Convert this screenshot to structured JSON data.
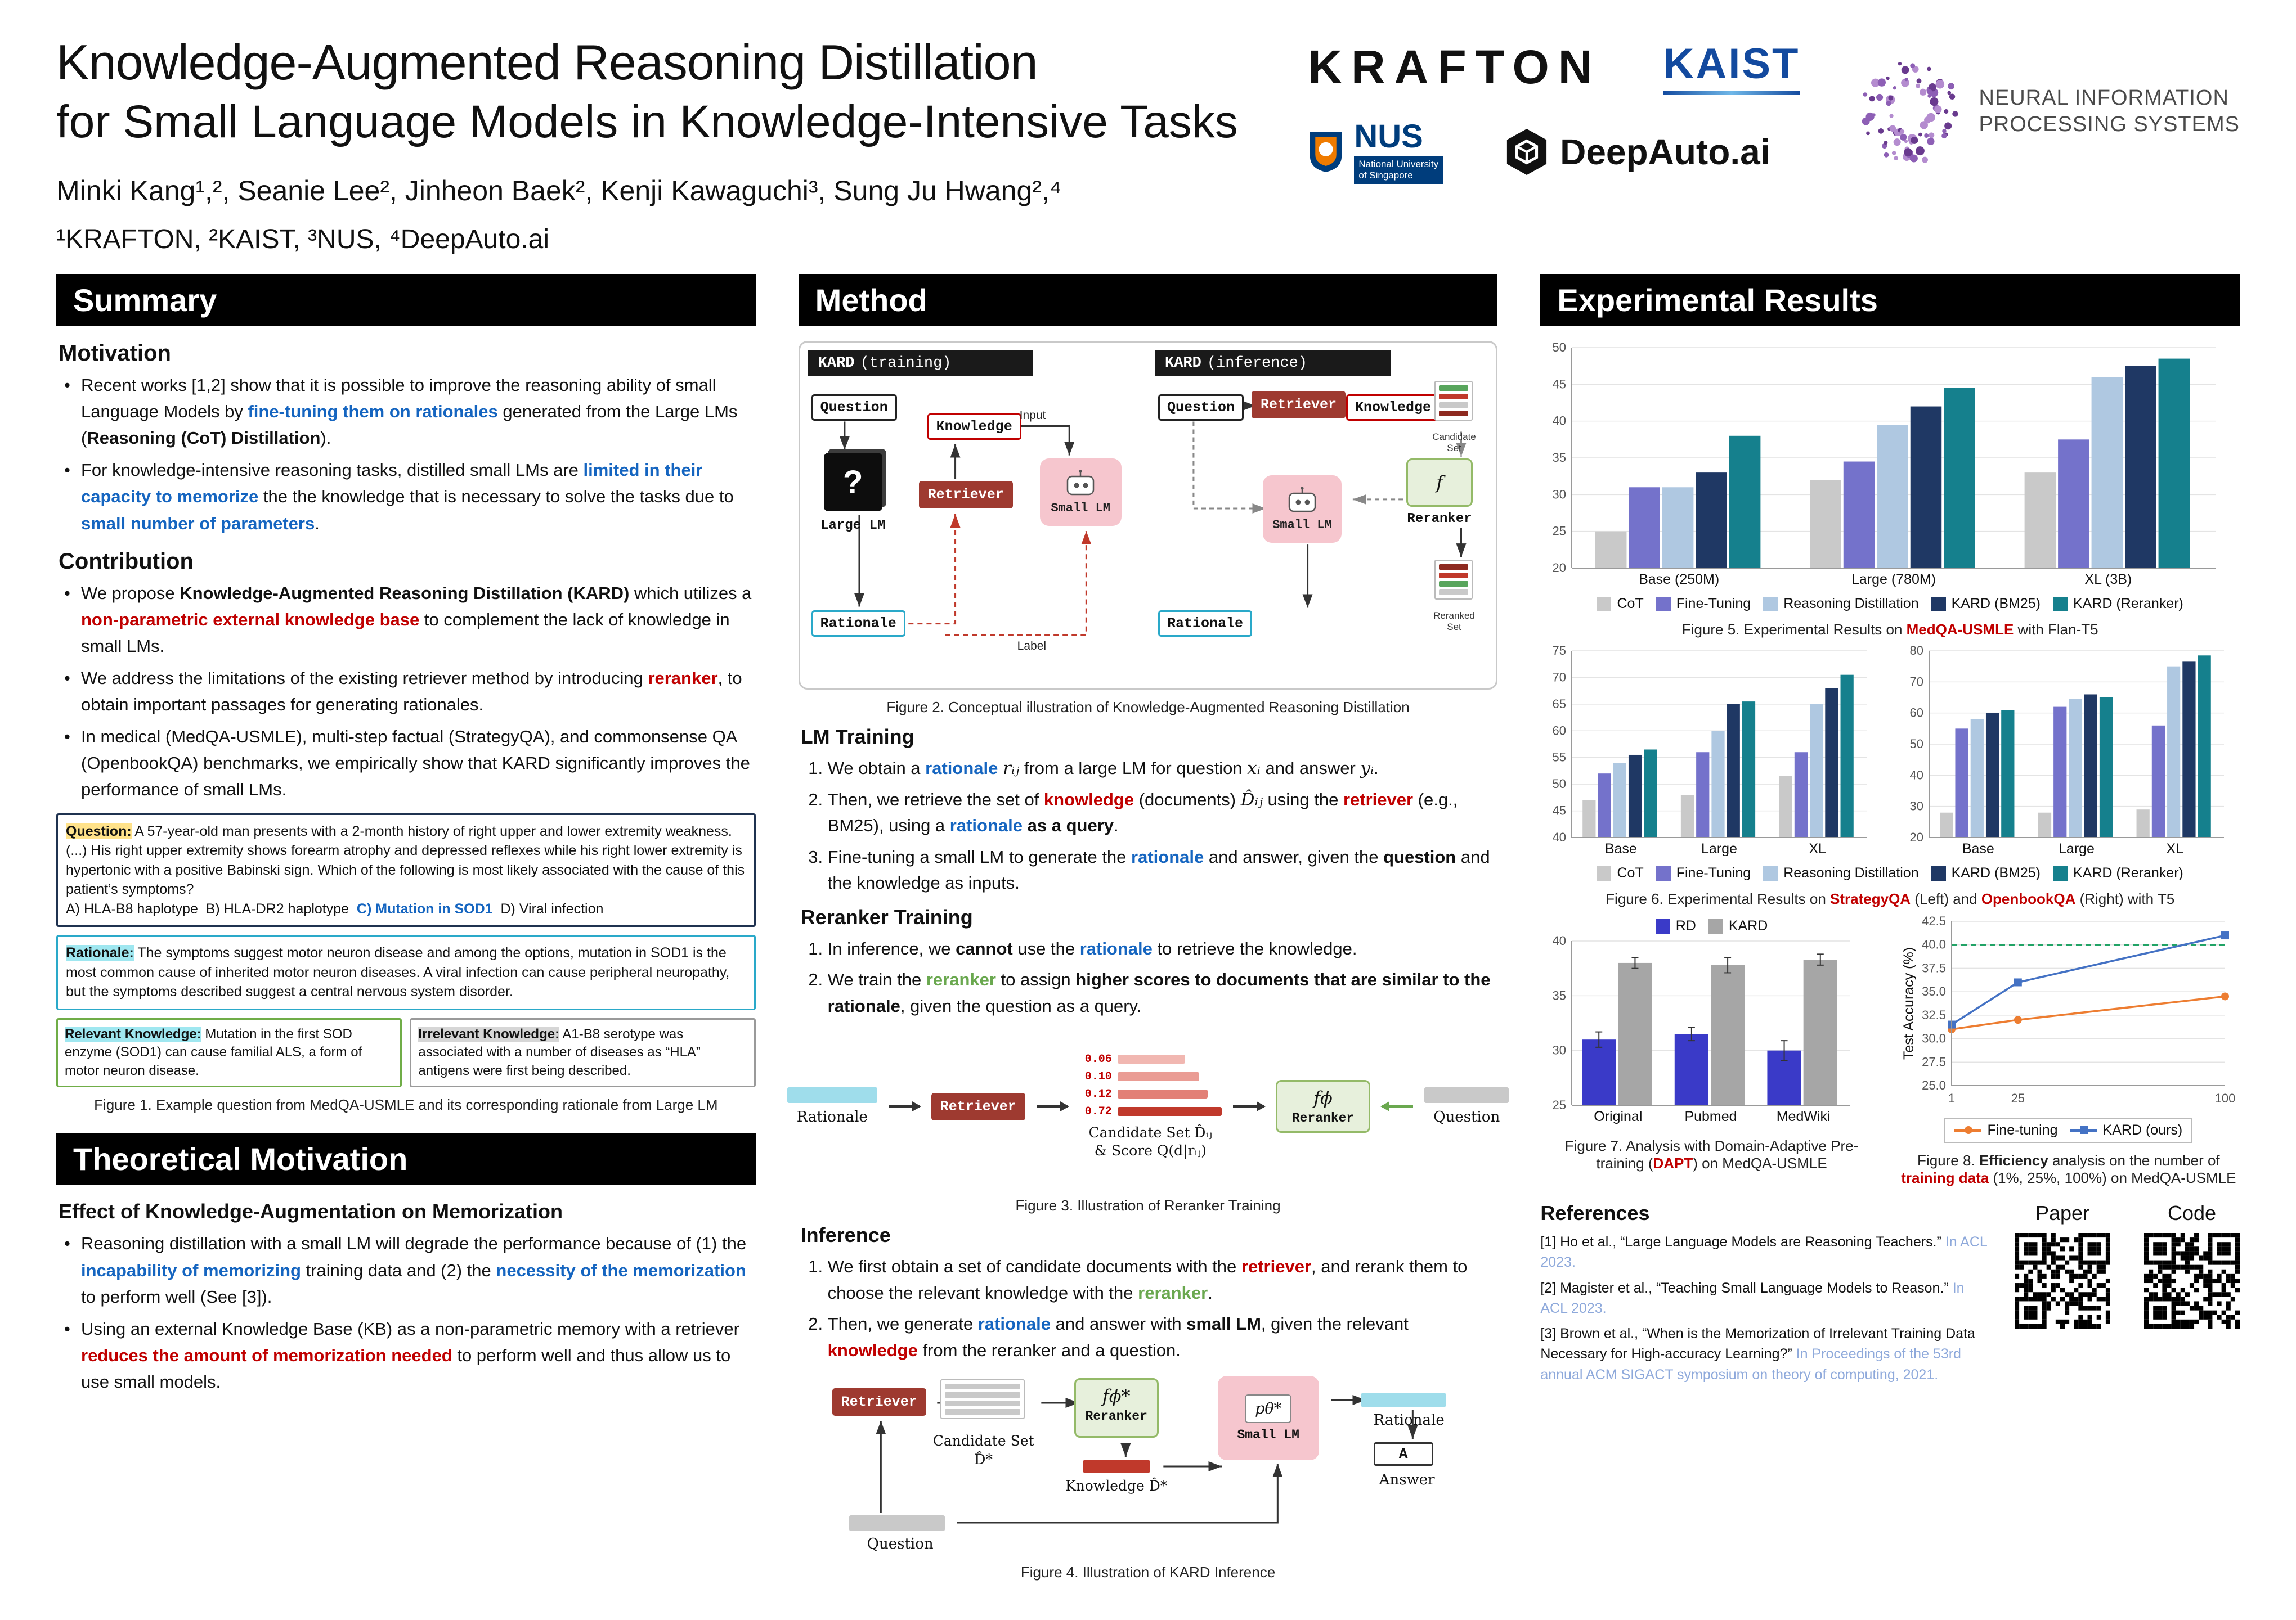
{
  "theme": {
    "blue": "#1565C0",
    "red": "#C00000",
    "green": "#6AA84F",
    "retriever-red": "#9E3A30",
    "smalllm-pink": "#F6C6CE",
    "reranker-green-bg": "#E7F0DC",
    "reranker-green-border": "#94BA68",
    "rationale-cyan": "#2AA9C9",
    "hl-yellow": "#FFE28A",
    "hl-cyan": "#9FE7F0",
    "hl-gray": "#D6D6D6",
    "ref-blue": "#8EA9DB",
    "kaist-blue": "#134A9F",
    "nus-blue": "#003D7C",
    "neurips-purple": "#7C4D9F"
  },
  "header": {
    "title_line1": "Knowledge-Augmented Reasoning Distillation",
    "title_line2": "for Small Language Models in Knowledge-Intensive Tasks",
    "authors": "Minki Kang¹,², Seanie Lee², Jinheon Baek², Kenji Kawaguchi³, Sung Ju Hwang²,⁴",
    "affiliations": "¹KRAFTON, ²KAIST, ³NUS, ⁴DeepAuto.ai",
    "logos": {
      "krafton": "KRAFTON",
      "kaist": "KAIST",
      "nus_word": "NUS",
      "nus_sub1": "National University",
      "nus_sub2": "of Singapore",
      "deepauto": "DeepAuto.ai",
      "neurips_line1": "NEURAL INFORMATION",
      "neurips_line2": "PROCESSING SYSTEMS"
    }
  },
  "summary": {
    "section_title": "Summary",
    "motivation_heading": "Motivation",
    "motivation_bullets": [
      [
        {
          "t": "Recent works [1,2] show that it is possible to improve the reasoning ability of small Language Models by "
        },
        {
          "t": "fine-tuning them on rationales",
          "c": "bb"
        },
        {
          "t": " generated from the Large LMs ("
        },
        {
          "t": "Reasoning (CoT) Distillation",
          "c": "b"
        },
        {
          "t": ")."
        }
      ],
      [
        {
          "t": "For knowledge-intensive reasoning tasks, distilled small LMs are "
        },
        {
          "t": "limited in their capacity to memorize",
          "c": "bb"
        },
        {
          "t": " the the knowledge that is necessary to solve the tasks due to "
        },
        {
          "t": "small number of parameters",
          "c": "bb"
        },
        {
          "t": "."
        }
      ]
    ],
    "contribution_heading": "Contribution",
    "contribution_bullets": [
      [
        {
          "t": "We propose "
        },
        {
          "t": "Knowledge-Augmented Reasoning Distillation (KARD)",
          "c": "b"
        },
        {
          "t": " which utilizes a "
        },
        {
          "t": "non-parametric external knowledge base",
          "c": "br"
        },
        {
          "t": " to complement the lack of knowledge in small LMs."
        }
      ],
      [
        {
          "t": "We address the limitations of the existing retriever method by introducing "
        },
        {
          "t": "reranker",
          "c": "br"
        },
        {
          "t": ", to obtain important passages for generating rationales."
        }
      ],
      [
        {
          "t": "In medical (MedQA-USMLE), multi-step factual (StrategyQA), and commonsense QA (OpenbookQA) benchmarks, we empirically show that KARD significantly improves the performance of small LMs."
        }
      ]
    ],
    "figure1": {
      "question": [
        {
          "t": "Question:",
          "c": "hl-y"
        },
        {
          "t": " A 57-year-old man presents with a 2-month history of right upper and lower extremity weakness. (...) His right upper extremity shows forearm atrophy and depressed reflexes while his right lower extremity is hypertonic with a positive Babinski sign. Which of the following is most likely associated with the cause of this patient’s symptoms?\nA) HLA-B8 haplotype  B) HLA-DR2 haplotype  "
        },
        {
          "t": "C) Mutation in SOD1",
          "c": "bb"
        },
        {
          "t": "  D) Viral infection"
        }
      ],
      "rationale": [
        {
          "t": "Rationale:",
          "c": "hl-c"
        },
        {
          "t": " The symptoms suggest motor neuron disease and among the options, mutation in SOD1 is the most common cause of inherited motor neuron diseases. A viral infection can cause peripheral neuropathy, but the symptoms described suggest a central nervous system disorder."
        }
      ],
      "relevant": [
        {
          "t": "Relevant Knowledge:",
          "c": "hl-c"
        },
        {
          "t": " Mutation in the first SOD enzyme (SOD1) can cause familial ALS, a form of motor neuron disease."
        }
      ],
      "irrelevant": [
        {
          "t": "Irrelevant Knowledge:",
          "c": "hl-g"
        },
        {
          "t": " A1-B8 serotype was associated with a number of diseases as “HLA” antigens were first being described."
        }
      ],
      "caption": "Figure 1. Example question from MedQA-USMLE and its corresponding rationale from Large LM"
    },
    "theory": {
      "section_title": "Theoretical Motivation",
      "subheading": "Effect of Knowledge-Augmentation on Memorization",
      "bullets": [
        [
          {
            "t": "Reasoning distillation with a small LM will degrade the performance because of (1) the "
          },
          {
            "t": "incapability of memorizing",
            "c": "bb"
          },
          {
            "t": " training data and (2) the "
          },
          {
            "t": "necessity of the memorization",
            "c": "bb"
          },
          {
            "t": " to perform well (See [3])."
          }
        ],
        [
          {
            "t": "Using an external Knowledge Base (KB) as a non-parametric memory with a retriever "
          },
          {
            "t": "reduces the amount of memorization needed",
            "c": "br"
          },
          {
            "t": " to perform well and thus allow us to use small models."
          }
        ]
      ]
    }
  },
  "method": {
    "section_title": "Method",
    "fig2": {
      "caption": "Figure 2. Conceptual illustration of Knowledge-Augmented Reasoning Distillation",
      "training": {
        "header_bold": "KARD",
        "header_rest": "(training)",
        "question": "Question",
        "knowledge": "Knowledge",
        "input": "Input",
        "label": "Label",
        "qmark": "?",
        "large_lm": "Large LM",
        "retriever": "Retriever",
        "small_lm": "Small LM",
        "rationale": "Rationale"
      },
      "inference": {
        "header_bold": "KARD",
        "header_rest": "(inference)",
        "question": "Question",
        "retriever": "Retriever",
        "knowledge": "Knowledge",
        "candidate_set": "Candidate Set",
        "f": "f",
        "reranker": "Reranker",
        "reranked_set": "Reranked Set",
        "small_lm": "Small LM",
        "rationale": "Rationale"
      }
    },
    "lm_training": {
      "heading": "LM Training",
      "items": [
        [
          {
            "t": "We obtain a "
          },
          {
            "t": "rationale",
            "c": "bb"
          },
          {
            "t": " "
          },
          {
            "t": "rᵢⱼ",
            "c": "m"
          },
          {
            "t": " from a large LM for question "
          },
          {
            "t": "xᵢ",
            "c": "m"
          },
          {
            "t": " and answer "
          },
          {
            "t": "yᵢ",
            "c": "m"
          },
          {
            "t": "."
          }
        ],
        [
          {
            "t": "Then, we retrieve the set of "
          },
          {
            "t": "knowledge",
            "c": "br"
          },
          {
            "t": " (documents) "
          },
          {
            "t": "D̂ᵢⱼ",
            "c": "m"
          },
          {
            "t": " using the "
          },
          {
            "t": "retriever",
            "c": "br"
          },
          {
            "t": " (e.g., BM25), using a "
          },
          {
            "t": "rationale",
            "c": "bb"
          },
          {
            "t": " "
          },
          {
            "t": "as a query",
            "c": "b"
          },
          {
            "t": "."
          }
        ],
        [
          {
            "t": "Fine-tuning a small LM to generate the "
          },
          {
            "t": "rationale",
            "c": "bb"
          },
          {
            "t": " and answer, given the "
          },
          {
            "t": "question",
            "c": "b"
          },
          {
            "t": " and the knowledge as inputs."
          }
        ]
      ]
    },
    "reranker_training": {
      "heading": "Reranker Training",
      "items": [
        [
          {
            "t": "In inference, we "
          },
          {
            "t": "cannot",
            "c": "b"
          },
          {
            "t": " use the "
          },
          {
            "t": "rationale",
            "c": "bb"
          },
          {
            "t": " to retrieve the knowledge."
          }
        ],
        [
          {
            "t": "We train the "
          },
          {
            "t": "reranker",
            "c": "bg"
          },
          {
            "t": " to assign "
          },
          {
            "t": "higher scores to documents that are similar to the rationale",
            "c": "b"
          },
          {
            "t": ", given the question as a query."
          }
        ]
      ]
    },
    "fig3": {
      "caption": "Figure 3. Illustration of Reranker Training",
      "rationale": "Rationale",
      "retriever": "Retriever",
      "scores": [
        "0.06",
        "0.10",
        "0.12",
        "0.72"
      ],
      "candidate_label_1": "Candidate Set D̂ᵢⱼ",
      "candidate_label_2": "& Score Q(d|rᵢⱼ)",
      "f_label": "fϕ",
      "reranker": "Reranker",
      "question": "Question"
    },
    "inference_sec": {
      "heading": "Inference",
      "items": [
        [
          {
            "t": "We first obtain a set of candidate documents with the "
          },
          {
            "t": "retriever",
            "c": "br"
          },
          {
            "t": ", and rerank them to choose the relevant knowledge with the "
          },
          {
            "t": "reranker",
            "c": "bg"
          },
          {
            "t": "."
          }
        ],
        [
          {
            "t": "Then, we generate "
          },
          {
            "t": "rationale",
            "c": "bb"
          },
          {
            "t": " and answer with "
          },
          {
            "t": "small LM",
            "c": "b"
          },
          {
            "t": ", given the relevant "
          },
          {
            "t": "knowledge",
            "c": "br"
          },
          {
            "t": " from the reranker and a question."
          }
        ]
      ]
    },
    "fig4": {
      "caption": "Figure 4. Illustration of KARD Inference",
      "retriever": "Retriever",
      "candidate_label": "Candidate Set D̂*",
      "f_label": "fϕ*",
      "reranker": "Reranker",
      "knowledge_label": "Knowledge D̂*",
      "p_label": "pθ*",
      "small_lm": "Small LM",
      "rationale": "Rationale",
      "answer_a": "A",
      "answer": "Answer",
      "question": "Question"
    }
  },
  "results": {
    "section_title": "Experimental Results",
    "fig5_caption": [
      {
        "t": "Figure 5. Experimental Results on "
      },
      {
        "t": "MedQA-USMLE",
        "c": "br"
      },
      {
        "t": " with Flan-T5"
      }
    ],
    "fig6_caption": [
      {
        "t": "Figure 6. Experimental Results on "
      },
      {
        "t": "StrategyQA",
        "c": "br"
      },
      {
        "t": " (Left) and "
      },
      {
        "t": "OpenbookQA",
        "c": "br"
      },
      {
        "t": " (Right) with T5"
      }
    ],
    "fig7_caption": [
      {
        "t": "Figure 7. Analysis with Domain-Adaptive Pre-training ("
      },
      {
        "t": "DAPT",
        "c": "br"
      },
      {
        "t": ") on MedQA-USMLE"
      }
    ],
    "fig8_caption": [
      {
        "t": "Figure 8. "
      },
      {
        "t": "Efficiency",
        "c": "b"
      },
      {
        "t": " analysis on the number of "
      },
      {
        "t": "training data",
        "c": "br"
      },
      {
        "t": " (1%, 25%, 100%) on MedQA-USMLE"
      }
    ],
    "references": {
      "heading": "References",
      "items": [
        [
          {
            "t": "[1] Ho et al., “Large Language Models are Reasoning Teachers.” "
          },
          {
            "t": "In ACL 2023.",
            "c": "lb"
          }
        ],
        [
          {
            "t": "[2] Magister et al., “Teaching Small Language Models to Reason.” "
          },
          {
            "t": "In ACL 2023.",
            "c": "lb"
          }
        ],
        [
          {
            "t": "[3] Brown et al., “When is the Memorization of Irrelevant Training Data Necessary for High-accuracy Learning?” "
          },
          {
            "t": "In Proceedings of the 53rd annual ACM SIGACT symposium on theory of computing, 2021.",
            "c": "lb"
          }
        ]
      ]
    },
    "paper_label": "Paper",
    "code_label": "Code"
  },
  "chart_data": [
    {
      "name": "fig5_medqa",
      "type": "bar",
      "title": "Experimental Results on MedQA-USMLE with Flan-T5",
      "categories": [
        "Base (250M)",
        "Large (780M)",
        "XL (3B)"
      ],
      "series": [
        {
          "name": "CoT",
          "color": "#C9C9C9",
          "values": [
            25,
            32,
            33
          ]
        },
        {
          "name": "Fine-Tuning",
          "color": "#7472CB",
          "values": [
            31,
            34.5,
            37.5
          ]
        },
        {
          "name": "Reasoning Distillation",
          "color": "#AFC8E1",
          "values": [
            31,
            39.5,
            46
          ]
        },
        {
          "name": "KARD (BM25)",
          "color": "#1F3864",
          "values": [
            33,
            42,
            47.5
          ]
        },
        {
          "name": "KARD (Reranker)",
          "color": "#15808D",
          "values": [
            38,
            44.5,
            48.5
          ]
        }
      ],
      "ylim": [
        20,
        50
      ],
      "ytick_step": 5,
      "grid": true,
      "legend_position": "bottom"
    },
    {
      "name": "fig6_strategyqa",
      "type": "bar",
      "title": "StrategyQA with T5",
      "categories": [
        "Base",
        "Large",
        "XL"
      ],
      "series": [
        {
          "name": "CoT",
          "color": "#C9C9C9",
          "values": [
            47,
            48,
            51.5
          ]
        },
        {
          "name": "Fine-Tuning",
          "color": "#7472CB",
          "values": [
            52,
            56,
            56
          ]
        },
        {
          "name": "Reasoning Distillation",
          "color": "#AFC8E1",
          "values": [
            54,
            60,
            65
          ]
        },
        {
          "name": "KARD (BM25)",
          "color": "#1F3864",
          "values": [
            55.5,
            65,
            68
          ]
        },
        {
          "name": "KARD (Reranker)",
          "color": "#15808D",
          "values": [
            56.5,
            65.5,
            70.5
          ]
        }
      ],
      "ylim": [
        40,
        75
      ],
      "ytick_step": 5,
      "grid": true,
      "legend_position": "shared"
    },
    {
      "name": "fig6_openbookqa",
      "type": "bar",
      "title": "OpenbookQA with T5",
      "categories": [
        "Base",
        "Large",
        "XL"
      ],
      "series": [
        {
          "name": "CoT",
          "color": "#C9C9C9",
          "values": [
            28,
            28,
            29
          ]
        },
        {
          "name": "Fine-Tuning",
          "color": "#7472CB",
          "values": [
            55,
            62,
            56
          ]
        },
        {
          "name": "Reasoning Distillation",
          "color": "#AFC8E1",
          "values": [
            58,
            64.5,
            75
          ]
        },
        {
          "name": "KARD (BM25)",
          "color": "#1F3864",
          "values": [
            60,
            66,
            76.5
          ]
        },
        {
          "name": "KARD (Reranker)",
          "color": "#15808D",
          "values": [
            61,
            65,
            78.5
          ]
        }
      ],
      "ylim": [
        20,
        80
      ],
      "ytick_step": 10,
      "grid": true,
      "legend_position": "shared"
    },
    {
      "name": "fig7_dapt",
      "type": "bar",
      "title": "Domain-Adaptive Pre-training (DAPT) on MedQA-USMLE",
      "categories": [
        "Original",
        "Pubmed",
        "MedWiki"
      ],
      "series": [
        {
          "name": "RD",
          "color": "#3A3AC8",
          "values": [
            31,
            31.5,
            30
          ],
          "errors": [
            0.7,
            0.6,
            0.9
          ]
        },
        {
          "name": "KARD",
          "color": "#A6A6A6",
          "values": [
            38,
            37.8,
            38.3
          ],
          "errors": [
            0.5,
            0.7,
            0.5
          ]
        }
      ],
      "ylim": [
        25,
        40
      ],
      "ytick_step": 5,
      "grid": true,
      "legend_position": "top"
    },
    {
      "name": "fig8_efficiency",
      "type": "line",
      "title": "Efficiency analysis on training data (1%, 25%, 100%) on MedQA-USMLE",
      "x": [
        1,
        25,
        100
      ],
      "xticks": [
        1,
        25,
        100
      ],
      "ylabel": "Test Accuracy (%)",
      "series": [
        {
          "name": "Fine-tuning",
          "color": "#ED7D31",
          "marker": "circle",
          "values": [
            31,
            32,
            34.5
          ]
        },
        {
          "name": "KARD (ours)",
          "color": "#4472C4",
          "marker": "square",
          "values": [
            31.5,
            36,
            41
          ]
        }
      ],
      "ylim": [
        25,
        42.5
      ],
      "ytick_step": 2.5,
      "ytick_decimals": 1,
      "hline": {
        "y": 40,
        "color": "#21A366",
        "style": "dashed"
      },
      "grid": true,
      "legend_position": "bottom-boxed"
    }
  ]
}
